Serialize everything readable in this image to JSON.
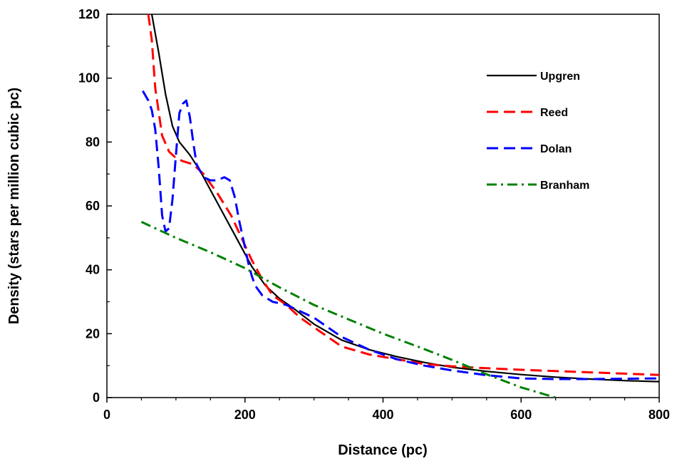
{
  "chart_data": {
    "type": "line",
    "title": "",
    "xlabel": "Distance (pc)",
    "ylabel": "Density (stars per million cubic pc)",
    "xlim": [
      0,
      800
    ],
    "ylim": [
      0,
      120
    ],
    "x_ticks": [
      0,
      200,
      400,
      600,
      800
    ],
    "y_ticks": [
      0,
      20,
      40,
      60,
      80,
      100,
      120
    ],
    "grid": false,
    "legend_position": "top-right",
    "series": [
      {
        "name": "Upgren",
        "color": "#000000",
        "dash": "solid",
        "points": [
          [
            65,
            120
          ],
          [
            75,
            108
          ],
          [
            85,
            95
          ],
          [
            95,
            85
          ],
          [
            105,
            80
          ],
          [
            120,
            76
          ],
          [
            135,
            71
          ],
          [
            150,
            65
          ],
          [
            170,
            57
          ],
          [
            190,
            49
          ],
          [
            210,
            41
          ],
          [
            230,
            35
          ],
          [
            250,
            31
          ],
          [
            270,
            28
          ],
          [
            300,
            23
          ],
          [
            340,
            18
          ],
          [
            380,
            15
          ],
          [
            420,
            12.8
          ],
          [
            460,
            11
          ],
          [
            500,
            9.5
          ],
          [
            550,
            8.2
          ],
          [
            600,
            7.2
          ],
          [
            650,
            6.4
          ],
          [
            700,
            5.8
          ],
          [
            750,
            5.3
          ],
          [
            800,
            5
          ]
        ]
      },
      {
        "name": "Reed",
        "color": "#ff0000",
        "dash": "dashed",
        "points": [
          [
            60,
            120
          ],
          [
            65,
            112
          ],
          [
            70,
            97
          ],
          [
            80,
            82
          ],
          [
            90,
            77
          ],
          [
            100,
            75
          ],
          [
            110,
            74
          ],
          [
            125,
            73
          ],
          [
            140,
            70
          ],
          [
            160,
            64
          ],
          [
            180,
            57
          ],
          [
            195,
            50
          ],
          [
            210,
            43
          ],
          [
            225,
            37
          ],
          [
            240,
            32
          ],
          [
            260,
            29
          ],
          [
            280,
            25
          ],
          [
            300,
            22
          ],
          [
            340,
            16
          ],
          [
            380,
            13.5
          ],
          [
            420,
            12
          ],
          [
            460,
            10.5
          ],
          [
            500,
            9.8
          ],
          [
            550,
            9.2
          ],
          [
            600,
            8.7
          ],
          [
            650,
            8.3
          ],
          [
            700,
            7.9
          ],
          [
            750,
            7.5
          ],
          [
            800,
            7.1
          ]
        ]
      },
      {
        "name": "Dolan",
        "color": "#0000ff",
        "dash": "dashed",
        "points": [
          [
            52,
            96
          ],
          [
            60,
            93
          ],
          [
            65,
            90
          ],
          [
            70,
            84
          ],
          [
            75,
            72
          ],
          [
            80,
            57
          ],
          [
            85,
            52
          ],
          [
            90,
            53
          ],
          [
            95,
            62
          ],
          [
            100,
            76
          ],
          [
            105,
            89
          ],
          [
            110,
            92
          ],
          [
            115,
            93
          ],
          [
            120,
            88
          ],
          [
            125,
            80
          ],
          [
            130,
            73
          ],
          [
            140,
            69
          ],
          [
            150,
            68
          ],
          [
            160,
            68
          ],
          [
            170,
            69
          ],
          [
            178,
            68
          ],
          [
            185,
            63
          ],
          [
            192,
            55
          ],
          [
            200,
            47
          ],
          [
            205,
            42
          ],
          [
            210,
            38
          ],
          [
            215,
            35
          ],
          [
            225,
            32
          ],
          [
            240,
            30
          ],
          [
            260,
            29
          ],
          [
            280,
            27
          ],
          [
            300,
            25
          ],
          [
            340,
            19
          ],
          [
            380,
            15
          ],
          [
            420,
            12
          ],
          [
            460,
            10
          ],
          [
            500,
            8.5
          ],
          [
            550,
            7
          ],
          [
            600,
            6
          ],
          [
            650,
            5.8
          ],
          [
            700,
            5.8
          ],
          [
            750,
            5.9
          ],
          [
            800,
            6
          ]
        ]
      },
      {
        "name": "Branham",
        "color": "#008000",
        "dash": "dashdot",
        "points": [
          [
            50,
            55
          ],
          [
            100,
            50
          ],
          [
            150,
            45.5
          ],
          [
            200,
            40.5
          ],
          [
            250,
            34.5
          ],
          [
            300,
            29
          ],
          [
            350,
            24.5
          ],
          [
            400,
            20
          ],
          [
            450,
            16
          ],
          [
            500,
            11.8
          ],
          [
            550,
            7.3
          ],
          [
            600,
            3.2
          ],
          [
            650,
            0
          ]
        ]
      }
    ]
  }
}
